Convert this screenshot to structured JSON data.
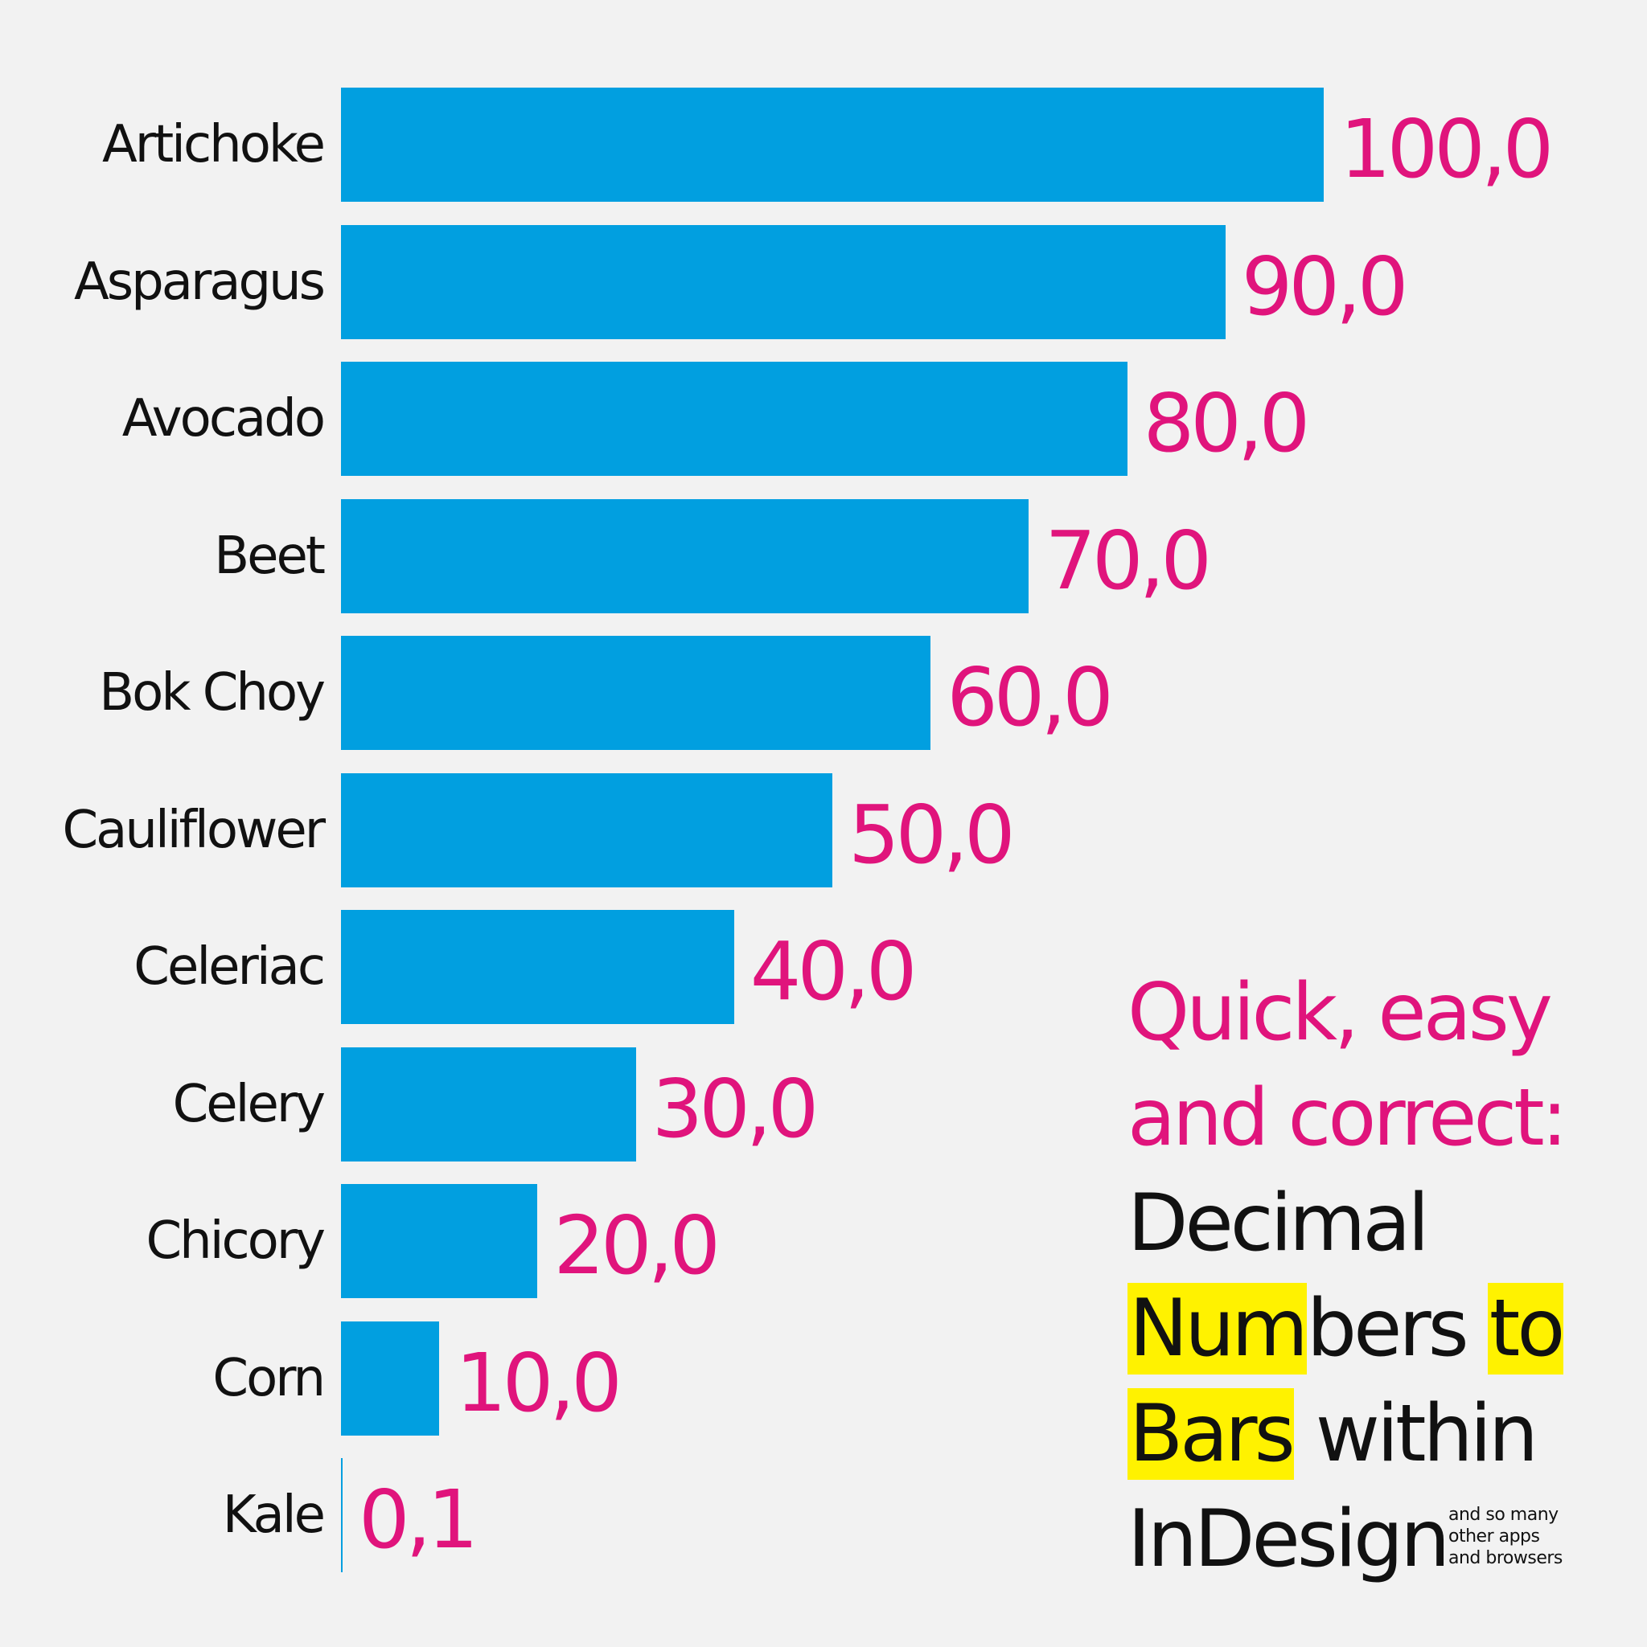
{
  "colors": {
    "background": "#f2f2f2",
    "bar": "#019fe0",
    "value_label": "#e0147c",
    "category_label": "#111111",
    "highlight": "#fff200"
  },
  "chart_data": {
    "type": "bar",
    "orientation": "horizontal",
    "categories": [
      "Artichoke",
      "Asparagus",
      "Avocado",
      "Beet",
      "Bok Choy",
      "Cauliflower",
      "Celeriac",
      "Celery",
      "Chicory",
      "Corn",
      "Kale"
    ],
    "values": [
      100.0,
      90.0,
      80.0,
      70.0,
      60.0,
      50.0,
      40.0,
      30.0,
      20.0,
      10.0,
      0.1
    ],
    "value_labels": [
      "100,0",
      "90,0",
      "80,0",
      "70,0",
      "60,0",
      "50,0",
      "40,0",
      "30,0",
      "20,0",
      "10,0",
      "0,1"
    ],
    "xlim": [
      0,
      100
    ],
    "axes_visible": false,
    "grid": false,
    "legend": "none"
  },
  "promo": {
    "line1": "Quick, easy",
    "line2": "and correct:",
    "line3": "Decimal",
    "line4_a": "Num",
    "line4_b": "bers",
    "line4_c": "to",
    "line5_a": "Bars",
    "line5_b": " within",
    "line6": "InDesign",
    "footnote": [
      "and so many",
      "other apps",
      "and browsers"
    ]
  }
}
